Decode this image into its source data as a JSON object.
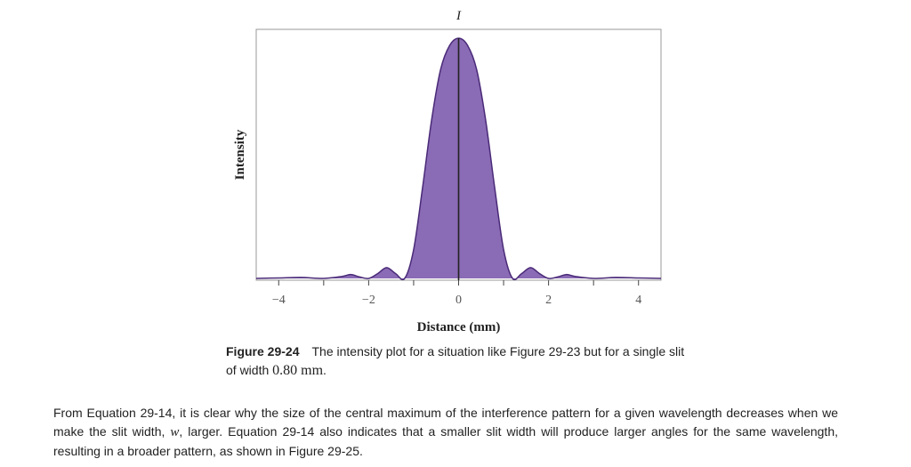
{
  "chart_data": {
    "type": "area",
    "xlabel": "Distance (mm)",
    "ylabel": "Intensity",
    "top_axis_label": "I",
    "xlim": [
      -4.5,
      4.5
    ],
    "ylim": [
      0,
      1.0
    ],
    "x_ticks": [
      -4,
      -2,
      0,
      2,
      4
    ],
    "x_tick_labels": [
      "−4",
      "−2",
      "0",
      "2",
      "4"
    ],
    "grid": false,
    "fill_color": "#8a6bb5",
    "line_color": "#4a2a78",
    "series": [
      {
        "x": [
          -4.5,
          -4.0,
          -3.5,
          -3.0,
          -2.6,
          -2.4,
          -2.2,
          -2.0,
          -1.8,
          -1.6,
          -1.4,
          -1.2,
          -1.0,
          -0.8,
          -0.6,
          -0.4,
          -0.2,
          0.0,
          0.2,
          0.4,
          0.6,
          0.8,
          1.0,
          1.2,
          1.4,
          1.6,
          1.8,
          2.0,
          2.2,
          2.4,
          2.6,
          3.0,
          3.5,
          4.0,
          4.5
        ],
        "y": [
          0.0,
          0.002,
          0.004,
          0.0,
          0.008,
          0.016,
          0.006,
          0.0,
          0.02,
          0.045,
          0.02,
          0.0,
          0.12,
          0.38,
          0.66,
          0.87,
          0.97,
          1.0,
          0.97,
          0.87,
          0.66,
          0.38,
          0.12,
          0.0,
          0.02,
          0.045,
          0.02,
          0.0,
          0.006,
          0.016,
          0.008,
          0.0,
          0.004,
          0.002,
          0.0
        ]
      }
    ]
  },
  "caption": {
    "figure_label": "Figure 29-24",
    "text_before": "The intensity plot for a situation like Figure 29-23 but for a single slit of width ",
    "math": "0.80  mm",
    "text_after": "."
  },
  "body": {
    "part1": "From Equation 29-14, it is clear why the size of the central maximum of the interference pattern for a given wavelength decreases when we make the slit width, ",
    "math": "w",
    "part2": ", larger. Equation 29-14 also indicates that a smaller slit width will produce larger angles for the same wavelength, resulting in a broader pattern, as shown in Figure 29-25."
  }
}
